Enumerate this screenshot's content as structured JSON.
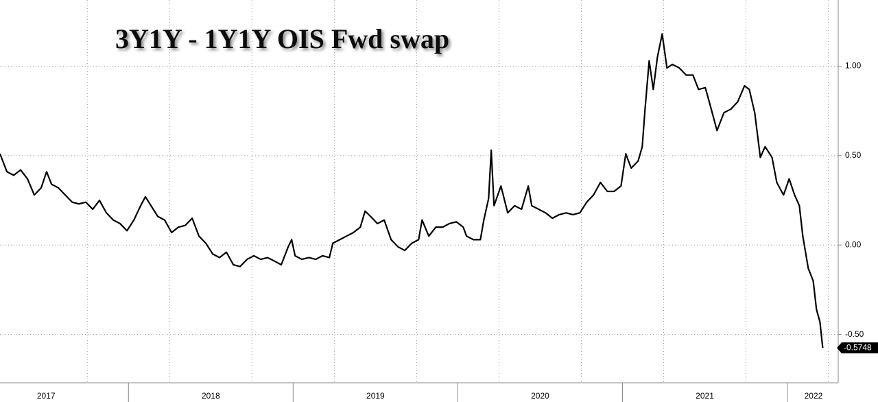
{
  "chart_data": {
    "type": "line",
    "title": "3Y1Y - 1Y1Y OIS Fwd swap",
    "color": "#000000",
    "x": [
      2017.22,
      2017.262,
      2017.303,
      2017.345,
      2017.387,
      2017.428,
      2017.47,
      2017.503,
      2017.533,
      2017.574,
      2017.616,
      2017.658,
      2017.699,
      2017.741,
      2017.783,
      2017.824,
      2017.866,
      2017.908,
      2017.949,
      2017.991,
      2018.033,
      2018.074,
      2018.103,
      2018.137,
      2018.178,
      2018.22,
      2018.262,
      2018.303,
      2018.345,
      2018.387,
      2018.428,
      2018.47,
      2018.512,
      2018.553,
      2018.595,
      2018.637,
      2018.678,
      2018.72,
      2018.762,
      2018.803,
      2018.845,
      2018.887,
      2018.928,
      2018.97,
      2018.991,
      2019.012,
      2019.053,
      2019.095,
      2019.137,
      2019.178,
      2019.22,
      2019.241,
      2019.283,
      2019.324,
      2019.366,
      2019.408,
      2019.437,
      2019.47,
      2019.512,
      2019.553,
      2019.595,
      2019.637,
      2019.678,
      2019.72,
      2019.762,
      2019.783,
      2019.824,
      2019.866,
      2019.908,
      2019.949,
      2019.991,
      2020.033,
      2020.053,
      2020.095,
      2020.137,
      2020.158,
      2020.187,
      2020.203,
      2020.22,
      2020.262,
      2020.303,
      2020.345,
      2020.387,
      2020.428,
      2020.449,
      2020.491,
      2020.533,
      2020.574,
      2020.616,
      2020.658,
      2020.699,
      2020.741,
      2020.783,
      2020.824,
      2020.866,
      2020.908,
      2020.949,
      2020.991,
      2021.02,
      2021.053,
      2021.095,
      2021.12,
      2021.137,
      2021.162,
      2021.187,
      2021.212,
      2021.241,
      2021.27,
      2021.303,
      2021.345,
      2021.387,
      2021.428,
      2021.462,
      2021.503,
      2021.533,
      2021.574,
      2021.616,
      2021.658,
      2021.699,
      2021.741,
      2021.77,
      2021.803,
      2021.837,
      2021.866,
      2021.908,
      2021.937,
      2021.978,
      2022.012,
      2022.045,
      2022.074,
      2022.095,
      2022.128,
      2022.158,
      2022.178,
      2022.199,
      2022.216
    ],
    "values": [
      0.51,
      0.41,
      0.39,
      0.42,
      0.37,
      0.28,
      0.32,
      0.41,
      0.34,
      0.32,
      0.28,
      0.24,
      0.23,
      0.24,
      0.2,
      0.25,
      0.18,
      0.14,
      0.12,
      0.08,
      0.14,
      0.22,
      0.27,
      0.22,
      0.16,
      0.14,
      0.07,
      0.1,
      0.11,
      0.15,
      0.05,
      0.01,
      -0.05,
      -0.07,
      -0.04,
      -0.11,
      -0.12,
      -0.08,
      -0.06,
      -0.08,
      -0.07,
      -0.09,
      -0.11,
      -0.01,
      0.03,
      -0.06,
      -0.08,
      -0.07,
      -0.08,
      -0.06,
      -0.07,
      0.01,
      0.03,
      0.05,
      0.07,
      0.1,
      0.19,
      0.16,
      0.12,
      0.14,
      0.03,
      -0.01,
      -0.03,
      0.01,
      0.03,
      0.14,
      0.05,
      0.1,
      0.1,
      0.12,
      0.13,
      0.1,
      0.05,
      0.03,
      0.03,
      0.14,
      0.26,
      0.53,
      0.22,
      0.33,
      0.18,
      0.22,
      0.2,
      0.33,
      0.22,
      0.2,
      0.18,
      0.15,
      0.17,
      0.18,
      0.17,
      0.18,
      0.24,
      0.28,
      0.35,
      0.3,
      0.3,
      0.33,
      0.51,
      0.43,
      0.47,
      0.55,
      0.76,
      1.03,
      0.87,
      1.05,
      1.18,
      0.99,
      1.01,
      0.99,
      0.95,
      0.95,
      0.87,
      0.88,
      0.78,
      0.64,
      0.74,
      0.76,
      0.8,
      0.89,
      0.87,
      0.74,
      0.49,
      0.55,
      0.49,
      0.35,
      0.28,
      0.37,
      0.28,
      0.22,
      0.05,
      -0.13,
      -0.2,
      -0.36,
      -0.43,
      -0.5748
    ],
    "xlim": [
      2017.22,
      2022.31
    ],
    "ylim": [
      -0.77,
      1.37
    ],
    "yticks": [
      {
        "value": -0.5,
        "label": "-0.50"
      },
      {
        "value": 0,
        "label": "0.00"
      },
      {
        "value": 0.5,
        "label": "0.50"
      },
      {
        "value": 1,
        "label": "1.00"
      }
    ],
    "xticks": [
      {
        "value": 2017.5,
        "label": "2017"
      },
      {
        "value": 2018.5,
        "label": "2018"
      },
      {
        "value": 2019.5,
        "label": "2019"
      },
      {
        "value": 2020.5,
        "label": "2020"
      },
      {
        "value": 2021.5,
        "label": "2021"
      },
      {
        "value": 2022.16,
        "label": "2022"
      }
    ],
    "xboundaries": [
      2018,
      2019,
      2020,
      2021,
      2022
    ],
    "xgrid": [
      2017.75,
      2018.25,
      2018.75,
      2019.25,
      2019.75,
      2020.25,
      2020.75,
      2021.25,
      2021.75,
      2022.25
    ],
    "grid": true
  }
}
